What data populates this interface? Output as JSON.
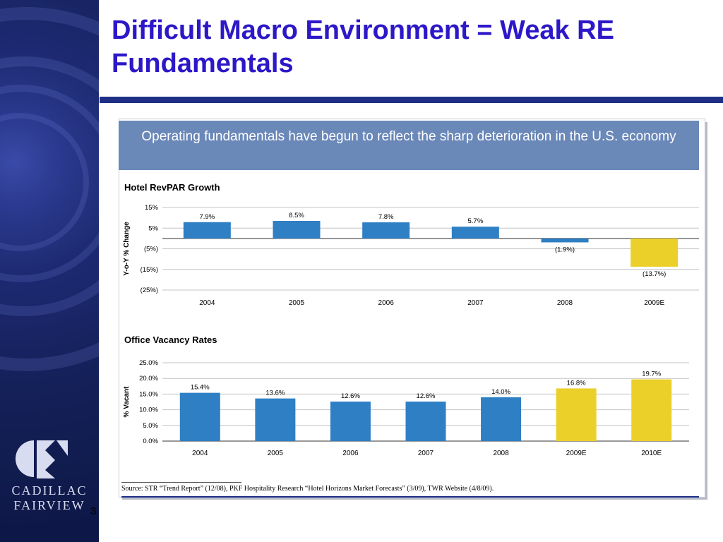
{
  "slide": {
    "title": "Difficult Macro Environment = Weak RE Fundamentals",
    "number": "3",
    "logo_line1": "CADILLAC",
    "logo_line2": "FAIRVIEW"
  },
  "banner": "Operating fundamentals have begun to reflect the sharp deterioration in the U.S. economy",
  "source": "Source: STR “Trend Report” (12/08), PKF Hospitality Research “Hotel Horizons Market Forecasts” (3/09), TWR Website (4/8/09).",
  "colors": {
    "actual": "#2e7fc4",
    "forecast": "#ecd02a",
    "title": "#2d18c8",
    "banner": "#6a88b8",
    "rule": "#1f2f86"
  },
  "chart_data": [
    {
      "type": "bar",
      "title": "Hotel RevPAR Growth",
      "ylabel": "Y-o-Y % Change",
      "categories": [
        "2004",
        "2005",
        "2006",
        "2007",
        "2008",
        "2009E"
      ],
      "values": [
        7.9,
        8.5,
        7.8,
        5.7,
        -1.9,
        -13.7
      ],
      "data_labels": [
        "7.9%",
        "8.5%",
        "7.8%",
        "5.7%",
        "(1.9%)",
        "(13.7%)"
      ],
      "forecast": [
        false,
        false,
        false,
        false,
        false,
        true
      ],
      "ylim": [
        -25,
        15
      ],
      "yticks": [
        15,
        5,
        -5,
        -15,
        -25
      ],
      "ytick_labels": [
        "15%",
        "5%",
        "(5%)",
        "(15%)",
        "(25%)"
      ],
      "grid": true
    },
    {
      "type": "bar",
      "title": "Office Vacancy Rates",
      "ylabel": "% Vacant",
      "categories": [
        "2004",
        "2005",
        "2006",
        "2007",
        "2008",
        "2009E",
        "2010E"
      ],
      "values": [
        15.4,
        13.6,
        12.6,
        12.6,
        14.0,
        16.8,
        19.7
      ],
      "data_labels": [
        "15.4%",
        "13.6%",
        "12.6%",
        "12.6%",
        "14.0%",
        "16.8%",
        "19.7%"
      ],
      "forecast": [
        false,
        false,
        false,
        false,
        false,
        true,
        true
      ],
      "ylim": [
        0,
        25
      ],
      "yticks": [
        25,
        20,
        15,
        10,
        5,
        0
      ],
      "ytick_labels": [
        "25.0%",
        "20.0%",
        "15.0%",
        "10.0%",
        "5.0%",
        "0.0%"
      ],
      "grid": true
    }
  ]
}
